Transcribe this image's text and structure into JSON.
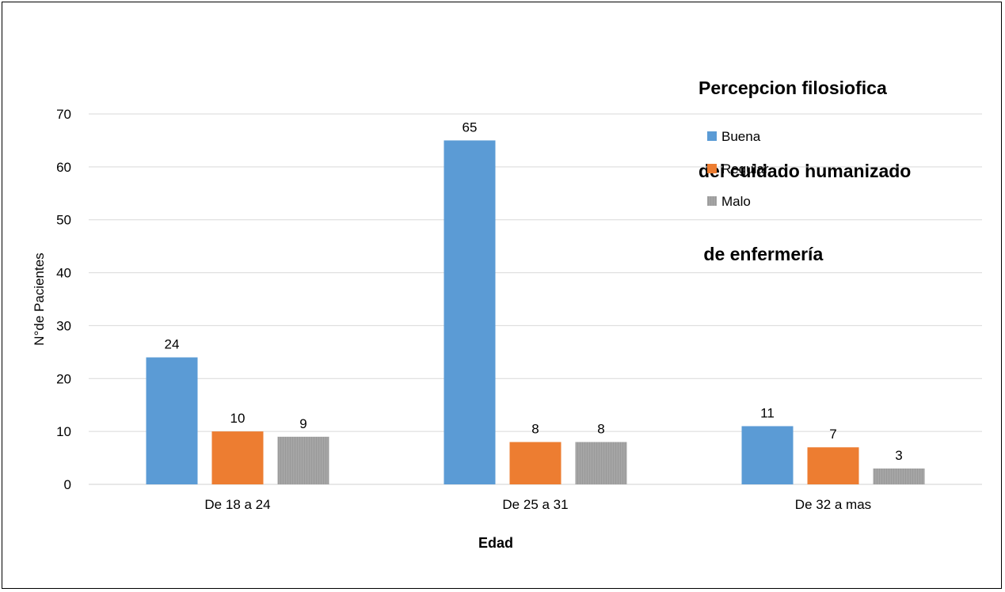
{
  "chart_data": {
    "type": "bar",
    "title_lines": [
      "Percepcion filosiofica",
      "del cuidado humanizado",
      " de enfermería"
    ],
    "xlabel": "Edad",
    "ylabel": "N°de Pacientes",
    "categories": [
      "De 18 a 24",
      "De 25 a 31",
      "De 32 a mas"
    ],
    "series": [
      {
        "name": "Buena",
        "values": [
          24,
          65,
          11
        ],
        "color": "#5b9bd5"
      },
      {
        "name": "Regular",
        "values": [
          10,
          8,
          7
        ],
        "color": "#ed7d31"
      },
      {
        "name": "Malo",
        "values": [
          9,
          8,
          3
        ],
        "color": "#a5a5a5"
      }
    ],
    "ylim": [
      0,
      70
    ],
    "yticks": [
      0,
      10,
      20,
      30,
      40,
      50,
      60,
      70
    ],
    "grid": true,
    "legend_position": "top-right",
    "data_labels": true
  }
}
